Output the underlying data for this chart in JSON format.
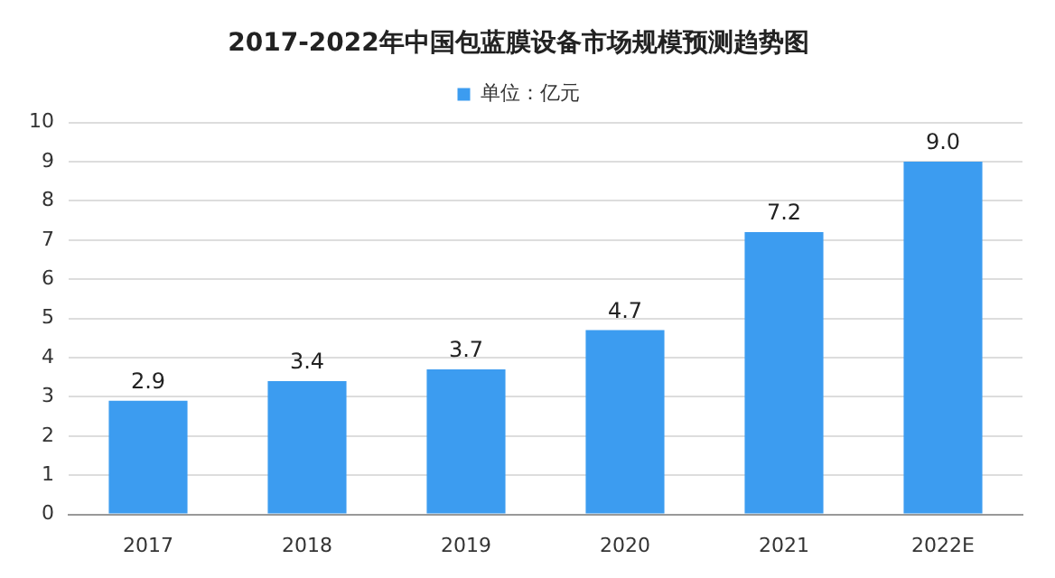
{
  "chart_data": {
    "type": "bar",
    "title": "2017-2022年中国包蓝膜设备市场规模预测趋势图",
    "categories": [
      "2017",
      "2018",
      "2019",
      "2020",
      "2021",
      "2022E"
    ],
    "series": [
      {
        "name": "单位：亿元",
        "color": "#3c9cf0",
        "values": [
          2.9,
          3.4,
          3.7,
          4.7,
          7.2,
          9.0
        ]
      }
    ],
    "value_labels": [
      "2.9",
      "3.4",
      "3.7",
      "4.7",
      "7.2",
      "9.0"
    ],
    "ylim": [
      0,
      10
    ],
    "yticks": [
      0,
      1,
      2,
      3,
      4,
      5,
      6,
      7,
      8,
      9,
      10
    ],
    "grid": "y",
    "legend": "top"
  }
}
